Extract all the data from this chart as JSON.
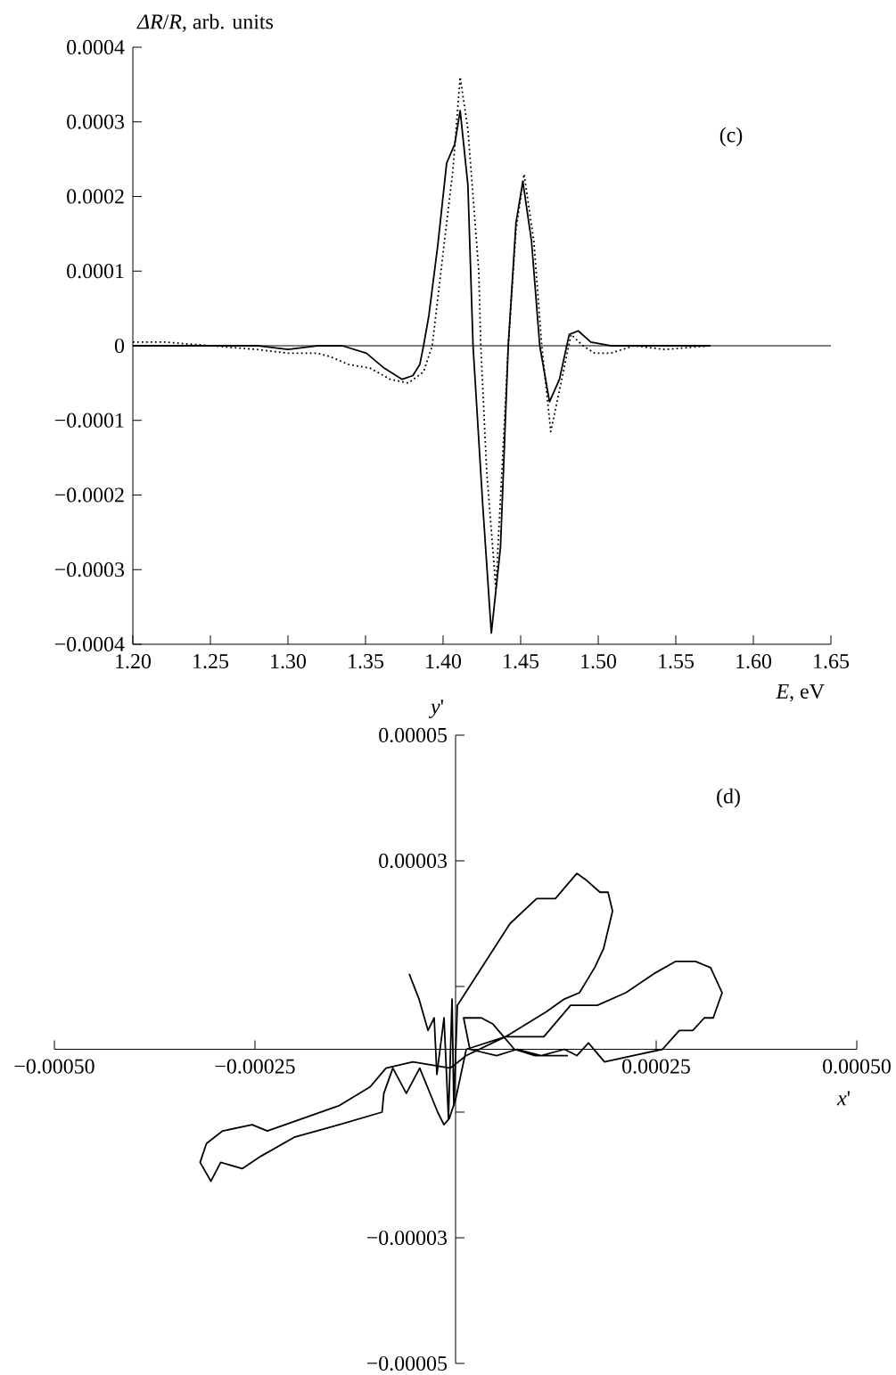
{
  "chart_data": [
    {
      "type": "line",
      "xlabel": "*E*, eV",
      "ylabel": "*ΔR*/*R*, arb. units",
      "annotations": [
        "(c)"
      ],
      "xlim": [
        1.2,
        1.65
      ],
      "xticks": [
        {
          "value": 1.2,
          "label": "1.20"
        },
        {
          "value": 1.25,
          "label": "1.25"
        },
        {
          "value": 1.3,
          "label": "1.30"
        },
        {
          "value": 1.35,
          "label": "1.35"
        },
        {
          "value": 1.4,
          "label": "1.40"
        },
        {
          "value": 1.45,
          "label": "1.45"
        },
        {
          "value": 1.5,
          "label": "1.50"
        },
        {
          "value": 1.55,
          "label": "1.55"
        },
        {
          "value": 1.6,
          "label": "1.60"
        },
        {
          "value": 1.65,
          "label": "1.65"
        }
      ],
      "ylim": [
        -0.0004,
        0.0004
      ],
      "yticks": [
        {
          "value": -0.0004,
          "label": "−0.0004"
        },
        {
          "value": -0.0003,
          "label": "−0.0003"
        },
        {
          "value": -0.0002,
          "label": "−0.0002"
        },
        {
          "value": -0.0001,
          "label": "−0.0001"
        },
        {
          "value": 0,
          "label": "0"
        },
        {
          "value": 0.0001,
          "label": "0.0001"
        },
        {
          "value": 0.0002,
          "label": "0.0002"
        },
        {
          "value": 0.0003,
          "label": "0.0003"
        },
        {
          "value": 0.0004,
          "label": "0.0004"
        }
      ],
      "ref_lines": [
        {
          "axis": "y",
          "value": 0,
          "color": "#000000"
        }
      ],
      "series": [
        {
          "color": "#000000",
          "line_style": "solid",
          "x": [
            1.2,
            1.22,
            1.24,
            1.26,
            1.28,
            1.3,
            1.32,
            1.335,
            1.3506,
            1.362,
            1.3736,
            1.3805,
            1.385,
            1.3874,
            1.3908,
            1.3966,
            1.4023,
            1.4075,
            1.411,
            1.416,
            1.4193,
            1.4256,
            1.4311,
            1.437,
            1.442,
            1.447,
            1.4514,
            1.457,
            1.4623,
            1.4686,
            1.475,
            1.4813,
            1.4871,
            1.4952,
            1.5079,
            1.523,
            1.543,
            1.5724
          ],
          "values": [
            0,
            0,
            0,
            0,
            0,
            -5e-06,
            0,
            0,
            -1e-05,
            -3e-05,
            -4.5e-05,
            -4e-05,
            -2.5e-05,
            0,
            4e-05,
            0.000135,
            0.000245,
            0.00027,
            0.000315,
            0.000215,
            0,
            -0.000215,
            -0.000385,
            -0.00027,
            0,
            0.000165,
            0.00022,
            0.00014,
            0,
            -7.5e-05,
            -4.5e-05,
            1.5e-05,
            2e-05,
            5e-06,
            0,
            0,
            0,
            0
          ]
        },
        {
          "color": "#000000",
          "line_style": "dotted",
          "x": [
            1.2,
            1.22,
            1.25,
            1.28,
            1.3,
            1.319,
            1.3276,
            1.339,
            1.3529,
            1.366,
            1.3776,
            1.3874,
            1.393,
            1.4006,
            1.4063,
            1.411,
            1.416,
            1.423,
            1.4243,
            1.428,
            1.434,
            1.438,
            1.442,
            1.447,
            1.4522,
            1.4585,
            1.4636,
            1.4694,
            1.475,
            1.4825,
            1.4902,
            1.4977,
            1.5079,
            1.523,
            1.543,
            1.572
          ],
          "values": [
            5e-06,
            5e-06,
            0,
            -5e-06,
            -1e-05,
            -1e-05,
            -1.5e-05,
            -2.5e-05,
            -3e-05,
            -4.5e-05,
            -5e-05,
            -3.5e-05,
            0,
            0.000135,
            0.000235,
            0.00036,
            0.00029,
            0.0001,
            0,
            -0.000165,
            -0.000325,
            -0.000165,
            0,
            0.000155,
            0.00023,
            0.00014,
            0,
            -0.000115,
            -6e-05,
            1.5e-05,
            0,
            -1e-05,
            -1e-05,
            0,
            -5e-06,
            0
          ]
        }
      ]
    },
    {
      "type": "line",
      "xlabel": "*x*'",
      "ylabel": "*y*'",
      "annotations": [
        "(d)"
      ],
      "xlim": [
        -0.0005,
        0.0005
      ],
      "xticks": [
        {
          "value": -0.0005,
          "label": "−0.00050"
        },
        {
          "value": -0.00025,
          "label": "−0.00025"
        },
        {
          "value": 0.00025,
          "label": "0.00025"
        },
        {
          "value": 0.0005,
          "label": "0.00050"
        }
      ],
      "ylim": [
        -5e-05,
        5e-05
      ],
      "yticks": [
        {
          "value": -5e-05,
          "label": "−0.00005"
        },
        {
          "value": -3e-05,
          "label": "−0.00003"
        },
        {
          "value": -1e-05,
          "label": null
        },
        {
          "value": 1e-05,
          "label": null
        },
        {
          "value": 3e-05,
          "label": "0.00003"
        },
        {
          "value": 5e-05,
          "label": "0.00005"
        }
      ],
      "series": [
        {
          "color": "#000000",
          "x": [
            -5.78e-05,
            -4.56e-05,
            -3.44e-05,
            -2.67e-05,
            -2.33e-05,
            -1.44e-05,
            -8.9e-06,
            -4.4e-06,
            -2.2e-06,
            2.2e-06,
            6.78e-05,
            0.0001011,
            0.0001244,
            0.0001511,
            0.0001622,
            0.00018,
            0.00019,
            0.0001956,
            0.0001844,
            0.0001733,
            0.0001544,
            0.0001356,
            0.0001133,
            6.22e-05,
            1.33e-05,
            -6.7e-06,
            -5.33e-05,
            -8.67e-05,
            -0.0001067,
            -0.0001456,
            -0.0002346,
            -0.0002536,
            -0.0002904,
            -0.0003105,
            -0.0003184,
            -0.000305,
            -0.0002927,
            -0.0002659,
            -0.0002424,
            -0.0002011,
            -0.0001452,
            -9.16e-05,
            -8.94e-05,
            -7.82e-05,
            -6.14e-05,
            -4.47e-05,
            -2.23e-05,
            -1.45e-05,
            -7.8e-06,
            0,
            1.33e-05,
            6.22e-05,
            0.00011,
            0.0001433,
            0.0001767,
            0.0002122,
            0.0002467,
            0.0002744,
            0.0002989,
            0.0003178,
            0.0003322,
            0.0003211,
            0.00031,
            0.0002956,
            0.0002789,
            0.0002578,
            0.0002211,
            0.0001856,
            0.0001656,
            0.0001511,
            0.0001356,
            0.0001067,
            7.67e-05,
            5.11e-05,
            1.78e-05,
            1e-05,
            3.22e-05,
            4.67e-05,
            7.33e-05,
            9.89e-05,
            0.00014
          ],
          "values": [
            1.2e-05,
            8e-06,
            3e-06,
            5e-06,
            -4e-06,
            5e-06,
            -1.1e-05,
            8e-06,
            -9e-06,
            7e-06,
            2e-05,
            2.4e-05,
            2.4e-05,
            2.8e-05,
            2.7e-05,
            2.5e-05,
            2.5e-05,
            2.2e-05,
            1.6e-05,
            1.3e-05,
            9e-06,
            8e-06,
            6e-06,
            2e-06,
            -1e-06,
            -3e-06,
            -2e-06,
            -3e-06,
            -6e-06,
            -9e-06,
            -1.3e-05,
            -1.2e-05,
            -1.3e-05,
            -1.5e-05,
            -1.8e-05,
            -2.1e-05,
            -1.8e-05,
            -1.9e-05,
            -1.7e-05,
            -1.4e-05,
            -1.2e-05,
            -1e-05,
            -7e-06,
            -3e-06,
            -7e-06,
            -3e-06,
            -1e-05,
            -1.2e-05,
            -1.1e-05,
            -8e-06,
            0,
            2e-06,
            2e-06,
            7e-06,
            7e-06,
            9e-06,
            1.2e-05,
            1.4e-05,
            1.4e-05,
            1.3e-05,
            9e-06,
            5e-06,
            5e-06,
            3e-06,
            3e-06,
            0,
            -1e-06,
            -2e-06,
            1e-06,
            -1e-06,
            0,
            -1e-06,
            0,
            -1e-06,
            0,
            5e-06,
            5e-06,
            4e-06,
            0,
            -1e-06,
            -1e-06
          ]
        }
      ]
    }
  ]
}
